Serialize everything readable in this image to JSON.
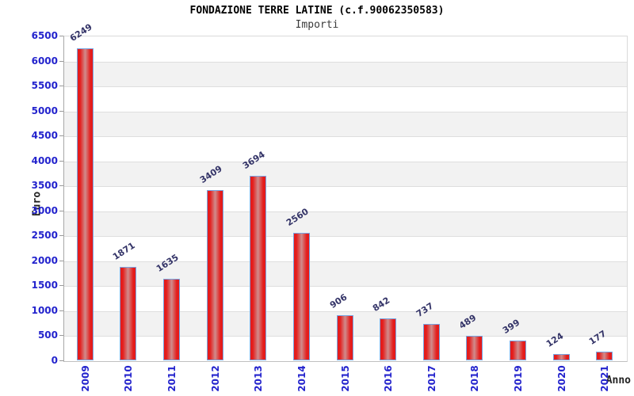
{
  "header": {
    "title": "FONDAZIONE TERRE LATINE (c.f.90062350583)",
    "subtitle": "Importi"
  },
  "chart_data": {
    "type": "bar",
    "title": "FONDAZIONE TERRE LATINE (c.f.90062350583)",
    "subtitle": "Importi",
    "categories": [
      "2009",
      "2010",
      "2011",
      "2012",
      "2013",
      "2014",
      "2015",
      "2016",
      "2017",
      "2018",
      "2019",
      "2020",
      "2021"
    ],
    "values": [
      6249,
      1871,
      1635,
      3409,
      3694,
      2560,
      906,
      842,
      737,
      489,
      399,
      124,
      177
    ],
    "xlabel": "Anno",
    "ylabel": "Euro",
    "ylim": [
      0,
      6500
    ],
    "ytick_step": 500,
    "ytick_labels": [
      "0",
      "500",
      "1000",
      "1500",
      "2000",
      "2500",
      "3000",
      "3500",
      "4000",
      "4500",
      "5000",
      "5500",
      "6000",
      "6500"
    ],
    "grid": true,
    "legend": "none",
    "colors": {
      "bar_red": "#e51a1a",
      "bar_center_highlight": "#d08c8c",
      "bar_border_blue": "#77a5e2",
      "tick_label_blue": "#2323cd",
      "value_label_navy": "#343468",
      "band_gray": "#f2f2f2",
      "grid_line": "#dedede",
      "title_black": "#000000",
      "subtitle_gray": "#3a3a3a"
    }
  }
}
